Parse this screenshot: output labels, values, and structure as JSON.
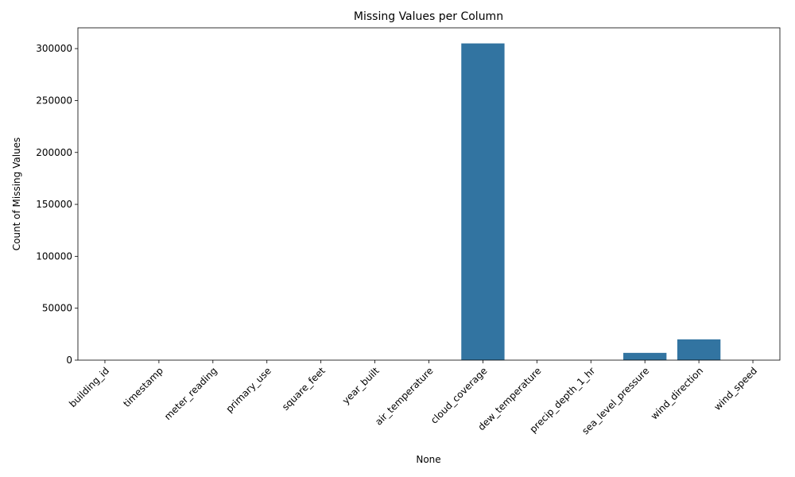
{
  "chart_data": {
    "type": "bar",
    "title": "Missing Values per Column",
    "xlabel": "None",
    "ylabel": "Count of Missing Values",
    "categories": [
      "building_id",
      "timestamp",
      "meter_reading",
      "primary_use",
      "square_feet",
      "year_built",
      "air_temperature",
      "cloud_coverage",
      "dew_temperature",
      "precip_depth_1_hr",
      "sea_level_pressure",
      "wind_direction",
      "wind_speed"
    ],
    "values": [
      0,
      0,
      0,
      0,
      0,
      0,
      0,
      305000,
      0,
      0,
      7000,
      20000,
      0
    ],
    "ylim": [
      0,
      320000
    ],
    "yticks": [
      0,
      50000,
      100000,
      150000,
      200000,
      250000,
      300000
    ],
    "grid": false,
    "bar_color": "#3274a1"
  }
}
